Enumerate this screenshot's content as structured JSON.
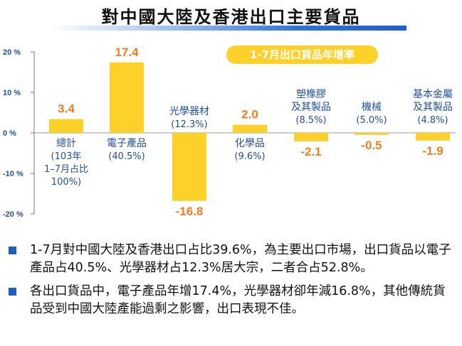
{
  "title": "對中國大陸及香港出口主要貨品",
  "chart_data": {
    "type": "bar",
    "legend": "1-7月出口貨品年增率",
    "ylim": [
      -20,
      20
    ],
    "yticks": [
      "20 %",
      "10 %",
      "0 %",
      "-10 %",
      "-20 %"
    ],
    "ytick_values": [
      20,
      10,
      0,
      -10,
      -20
    ],
    "bar_color": "#fdd12a",
    "value_label_color": "#f07d22",
    "categories": [
      {
        "name": "總計",
        "share": "(103年\n1–7月占比\n100%)",
        "value": 3.4,
        "value_label": "3.4",
        "label_pos": "below"
      },
      {
        "name": "電子產品",
        "share": "(40.5%)",
        "value": 17.4,
        "value_label": "17.4",
        "label_pos": "below"
      },
      {
        "name": "光學器材",
        "share": "(12.3%)",
        "value": -16.8,
        "value_label": "-16.8",
        "label_pos": "above"
      },
      {
        "name": "化學品",
        "share": "(9.6%)",
        "value": 2.0,
        "value_label": "2.0",
        "label_pos": "below"
      },
      {
        "name": "塑橡膠\n及其製品",
        "share": "(8.5%)",
        "value": -2.1,
        "value_label": "-2.1",
        "label_pos": "above"
      },
      {
        "name": "機械",
        "share": "(5.0%)",
        "value": -0.5,
        "value_label": "-0.5",
        "label_pos": "above"
      },
      {
        "name": "基本金屬\n及其製品",
        "share": "(4.8%)",
        "value": -1.9,
        "value_label": "-1.9",
        "label_pos": "above"
      }
    ]
  },
  "bullets": [
    "1-7月對中國大陸及香港出口占比39.6%，為主要出口市場，出口貨品以電子產品占40.5%、光學器材占12.3%居大宗，二者合占52.8%。",
    "各出口貨品中，電子產品年增17.4%，光學器材卻年減16.8%，其他傳統貨品受到中國大陸產能過剩之影響，出口表現不佳。"
  ]
}
